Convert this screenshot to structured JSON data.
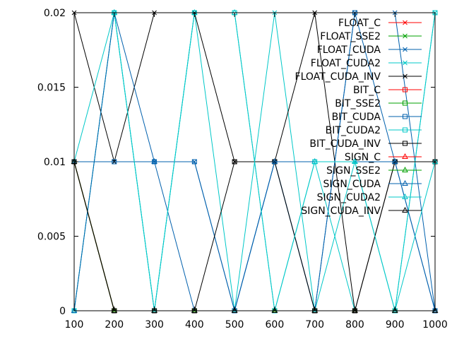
{
  "chart_data": {
    "type": "line",
    "title": "",
    "xlabel": "",
    "ylabel": "",
    "x": [
      100,
      200,
      300,
      400,
      500,
      600,
      700,
      800,
      900,
      1000
    ],
    "xlim": [
      100,
      1000
    ],
    "ylim": [
      0,
      0.02
    ],
    "xticks": [
      "100",
      "200",
      "300",
      "400",
      "500",
      "600",
      "700",
      "800",
      "900",
      "1000"
    ],
    "yticks": [
      {
        "value": 0,
        "label": "0"
      },
      {
        "value": 0.005,
        "label": "0.005"
      },
      {
        "value": 0.01,
        "label": "0.01"
      },
      {
        "value": 0.015,
        "label": "0.015"
      },
      {
        "value": 0.02,
        "label": "0.02"
      }
    ],
    "grid": false,
    "legend_position": "top-right",
    "series": [
      {
        "name": "FLOAT_C",
        "color": "#ff0000",
        "marker": "x",
        "values": [
          0.01,
          0,
          0,
          0,
          0,
          0,
          0,
          0,
          0,
          0
        ]
      },
      {
        "name": "FLOAT_SSE2",
        "color": "#00a000",
        "marker": "x",
        "values": [
          0.01,
          0,
          0,
          0,
          0,
          0,
          0,
          0,
          0,
          0
        ]
      },
      {
        "name": "FLOAT_CUDA",
        "color": "#0060ad",
        "marker": "x",
        "values": [
          0.01,
          0.01,
          0.01,
          0.01,
          0,
          0.01,
          0,
          0.02,
          0.02,
          0
        ]
      },
      {
        "name": "FLOAT_CUDA2",
        "color": "#00c8c8",
        "marker": "x",
        "values": [
          0,
          0.02,
          0,
          0.02,
          0,
          0.02,
          0,
          0.01,
          0,
          0.02
        ]
      },
      {
        "name": "FLOAT_CUDA_INV",
        "color": "#000000",
        "marker": "x",
        "values": [
          0.02,
          0.01,
          0.02,
          0.02,
          0.01,
          0.01,
          0.02,
          0,
          0.01,
          0.01
        ]
      },
      {
        "name": "BIT_C",
        "color": "#ff0000",
        "marker": "square",
        "values": [
          0.01,
          0,
          0,
          0,
          0,
          0,
          0,
          0,
          0,
          0
        ]
      },
      {
        "name": "BIT_SSE2",
        "color": "#00a000",
        "marker": "square",
        "values": [
          0.01,
          0,
          0,
          0,
          0,
          0,
          0,
          0,
          0,
          0
        ]
      },
      {
        "name": "BIT_CUDA",
        "color": "#0060ad",
        "marker": "square",
        "values": [
          0.01,
          0.01,
          0.01,
          0.01,
          0,
          0.01,
          0,
          0.02,
          0.01,
          0
        ]
      },
      {
        "name": "BIT_CUDA2",
        "color": "#00c8c8",
        "marker": "square",
        "values": [
          0,
          0.02,
          0,
          0.02,
          0.02,
          0,
          0.01,
          0,
          0,
          0.02
        ]
      },
      {
        "name": "BIT_CUDA_INV",
        "color": "#000000",
        "marker": "square",
        "values": [
          0.01,
          0,
          0,
          0,
          0.01,
          0.01,
          0,
          0,
          0.01,
          0.01
        ]
      },
      {
        "name": "SIGN_C",
        "color": "#ff0000",
        "marker": "triangle",
        "values": [
          0.01,
          0,
          0,
          0,
          0,
          0,
          0,
          0,
          0,
          0
        ]
      },
      {
        "name": "SIGN_SSE2",
        "color": "#00a000",
        "marker": "triangle",
        "values": [
          0.01,
          0,
          0,
          0,
          0,
          0,
          0,
          0,
          0,
          0
        ]
      },
      {
        "name": "SIGN_CUDA",
        "color": "#0060ad",
        "marker": "triangle",
        "values": [
          0,
          0.02,
          0.01,
          0,
          0,
          0.01,
          0.01,
          0.01,
          0.01,
          0
        ]
      },
      {
        "name": "SIGN_CUDA2",
        "color": "#00c8c8",
        "marker": "triangle",
        "values": [
          0.01,
          0.02,
          0,
          0.02,
          0.02,
          0,
          0.01,
          0.01,
          0,
          0.01
        ]
      },
      {
        "name": "SIGN_CUDA_INV",
        "color": "#000000",
        "marker": "triangle",
        "values": [
          0.01,
          0,
          0,
          0,
          0,
          0,
          0,
          0,
          0,
          0
        ]
      }
    ]
  }
}
